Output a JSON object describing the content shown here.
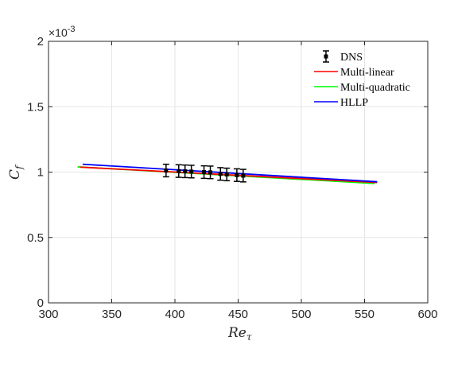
{
  "chart_data": {
    "type": "line",
    "xlabel": "Re",
    "xlabel_sub": "τ",
    "ylabel": "C",
    "ylabel_sub": "f",
    "xlim": [
      300,
      600
    ],
    "ylim": [
      0,
      0.002
    ],
    "x_ticks": [
      300,
      350,
      400,
      450,
      500,
      550,
      600
    ],
    "x_tick_labels": [
      "300",
      "350",
      "400",
      "450",
      "500",
      "550",
      "600"
    ],
    "y_ticks": [
      0,
      0.0005,
      0.001,
      0.0015,
      0.002
    ],
    "y_tick_labels": [
      "0",
      "0.5",
      "1",
      "1.5",
      "2"
    ],
    "y_multiplier_base": "×10",
    "y_multiplier_exp": "-3",
    "grid": true,
    "legend_position": "top-right",
    "series": [
      {
        "name": "DNS",
        "kind": "errorbar",
        "color": "#000000",
        "x": [
          393,
          403,
          408,
          413,
          423,
          428,
          436,
          441,
          449,
          454
        ],
        "y": [
          0.001012,
          0.001008,
          0.001006,
          0.001004,
          0.001,
          0.000998,
          0.000986,
          0.000982,
          0.000977,
          0.000973
        ],
        "err": [
          4.8e-05,
          4.8e-05,
          4.8e-05,
          4.8e-05,
          4.8e-05,
          4.8e-05,
          4.8e-05,
          4.8e-05,
          4.8e-05,
          4.8e-05
        ]
      },
      {
        "name": "Multi-linear",
        "kind": "line",
        "color": "#ff0000",
        "x": [
          325,
          560
        ],
        "y": [
          0.001038,
          0.00092
        ]
      },
      {
        "name": "Multi-quadratic",
        "kind": "line",
        "color": "#00ff00",
        "x": [
          323,
          558
        ],
        "y": [
          0.00104,
          0.000913
        ]
      },
      {
        "name": "HLLP",
        "kind": "line",
        "color": "#0000ff",
        "x": [
          327,
          560
        ],
        "y": [
          0.00106,
          0.000926
        ]
      }
    ]
  }
}
